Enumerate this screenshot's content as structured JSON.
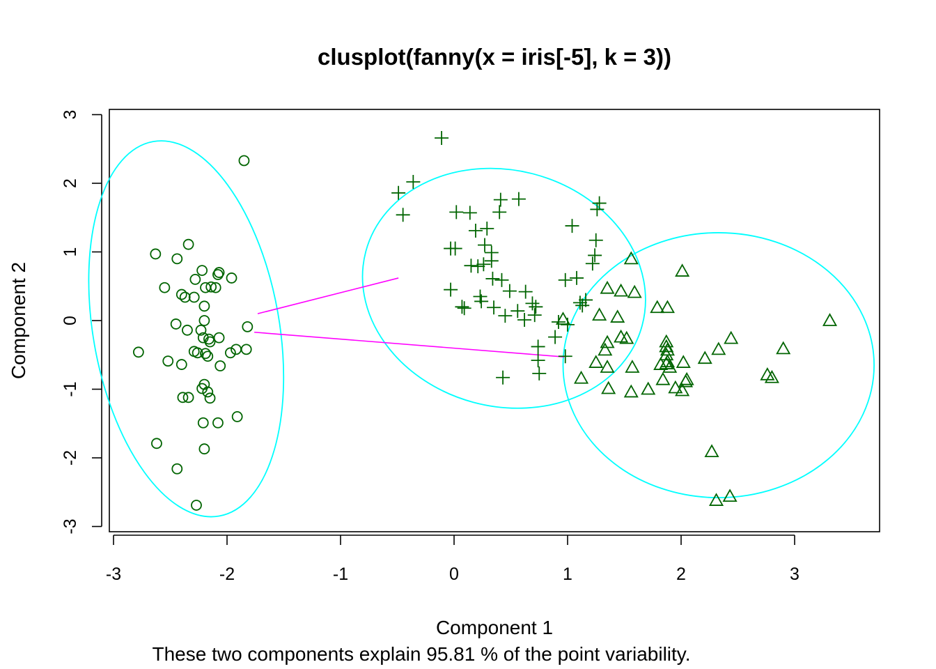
{
  "chart_data": {
    "type": "scatter",
    "title": "clusplot(fanny(x = iris[-5], k = 3))",
    "xlabel": "Component 1",
    "ylabel": "Component 2",
    "subtitle": "These two components explain 95.81 % of the point variability.",
    "xlim": [
      -3,
      3.5
    ],
    "ylim": [
      -3,
      3
    ],
    "xticks": [
      -3,
      -2,
      -1,
      0,
      1,
      2,
      3
    ],
    "yticks": [
      -3,
      -2,
      -1,
      0,
      1,
      2,
      3
    ],
    "xtick_labels": [
      "-3",
      "-2",
      "-1",
      "0",
      "1",
      "2",
      "3"
    ],
    "ytick_labels": [
      "-3",
      "-2",
      "-1",
      "0",
      "1",
      "2",
      "3"
    ],
    "point_color": "#006400",
    "ellipse_color": "#00FFFF",
    "line_color": "#FF00FF",
    "clusters": [
      {
        "marker": "circle",
        "ellipse": {
          "cx": -2.36,
          "cy": -0.12,
          "rx": 0.82,
          "ry": 2.77,
          "angle_deg": 80
        },
        "points": [
          [
            -1.85,
            2.33
          ],
          [
            -2.63,
            0.97
          ],
          [
            -2.34,
            1.11
          ],
          [
            -2.44,
            0.9
          ],
          [
            -2.55,
            0.48
          ],
          [
            -2.22,
            0.73
          ],
          [
            -2.28,
            0.6
          ],
          [
            -2.4,
            0.38
          ],
          [
            -2.37,
            0.34
          ],
          [
            -2.29,
            0.34
          ],
          [
            -2.19,
            0.48
          ],
          [
            -2.14,
            0.49
          ],
          [
            -2.1,
            0.48
          ],
          [
            -2.07,
            0.7
          ],
          [
            -2.08,
            0.67
          ],
          [
            -1.96,
            0.62
          ],
          [
            -2.2,
            0.21
          ],
          [
            -2.45,
            -0.05
          ],
          [
            -2.2,
            0.0
          ],
          [
            -2.35,
            -0.14
          ],
          [
            -2.23,
            -0.14
          ],
          [
            -2.21,
            -0.25
          ],
          [
            -2.16,
            -0.27
          ],
          [
            -2.15,
            -0.31
          ],
          [
            -2.07,
            -0.25
          ],
          [
            -1.82,
            -0.09
          ],
          [
            -2.78,
            -0.46
          ],
          [
            -2.52,
            -0.59
          ],
          [
            -2.29,
            -0.45
          ],
          [
            -2.26,
            -0.47
          ],
          [
            -2.19,
            -0.48
          ],
          [
            -2.17,
            -0.52
          ],
          [
            -2.06,
            -0.66
          ],
          [
            -1.97,
            -0.47
          ],
          [
            -1.92,
            -0.42
          ],
          [
            -1.83,
            -0.42
          ],
          [
            -2.4,
            -0.64
          ],
          [
            -2.2,
            -0.93
          ],
          [
            -2.22,
            -0.99
          ],
          [
            -2.17,
            -1.04
          ],
          [
            -2.15,
            -1.13
          ],
          [
            -2.39,
            -1.12
          ],
          [
            -2.34,
            -1.12
          ],
          [
            -2.21,
            -1.49
          ],
          [
            -2.08,
            -1.49
          ],
          [
            -1.91,
            -1.4
          ],
          [
            -2.62,
            -1.79
          ],
          [
            -2.2,
            -1.87
          ],
          [
            -2.44,
            -2.16
          ],
          [
            -2.27,
            -2.69
          ]
        ]
      },
      {
        "marker": "plus",
        "ellipse": {
          "cx": 0.44,
          "cy": 0.47,
          "rx": 1.26,
          "ry": 1.72,
          "angle_deg": 105
        },
        "points": [
          [
            -0.11,
            2.66
          ],
          [
            -0.36,
            2.02
          ],
          [
            -0.49,
            1.86
          ],
          [
            -0.45,
            1.54
          ],
          [
            0.02,
            1.58
          ],
          [
            0.14,
            1.57
          ],
          [
            0.4,
            1.58
          ],
          [
            0.41,
            1.76
          ],
          [
            0.57,
            1.77
          ],
          [
            0.19,
            1.31
          ],
          [
            0.29,
            1.34
          ],
          [
            0.27,
            1.1
          ],
          [
            0.33,
            0.99
          ],
          [
            -0.03,
            1.05
          ],
          [
            0.01,
            1.05
          ],
          [
            0.33,
            0.87
          ],
          [
            0.15,
            0.8
          ],
          [
            0.21,
            0.79
          ],
          [
            0.26,
            0.82
          ],
          [
            0.34,
            0.61
          ],
          [
            0.42,
            0.59
          ],
          [
            0.49,
            0.43
          ],
          [
            -0.03,
            0.45
          ],
          [
            0.23,
            0.35
          ],
          [
            0.24,
            0.28
          ],
          [
            0.07,
            0.2
          ],
          [
            0.09,
            0.18
          ],
          [
            0.35,
            0.19
          ],
          [
            0.45,
            0.07
          ],
          [
            0.56,
            0.14
          ],
          [
            0.63,
            0.42
          ],
          [
            0.62,
            0.01
          ],
          [
            0.69,
            0.25
          ],
          [
            0.72,
            0.2
          ],
          [
            0.71,
            0.08
          ],
          [
            1.04,
            1.38
          ],
          [
            1.26,
            1.62
          ],
          [
            1.28,
            1.71
          ],
          [
            1.25,
            1.17
          ],
          [
            1.24,
            0.95
          ],
          [
            1.22,
            0.83
          ],
          [
            0.98,
            0.59
          ],
          [
            1.08,
            0.62
          ],
          [
            1.11,
            0.26
          ],
          [
            1.16,
            0.3
          ],
          [
            0.92,
            -0.02
          ],
          [
            1.0,
            -0.06
          ],
          [
            0.89,
            -0.24
          ],
          [
            0.74,
            -0.38
          ],
          [
            0.98,
            -0.52
          ],
          [
            0.74,
            -0.58
          ],
          [
            0.75,
            -0.77
          ],
          [
            0.43,
            -0.83
          ],
          [
            1.13,
            0.22
          ]
        ]
      },
      {
        "marker": "triangle",
        "ellipse": {
          "cx": 2.33,
          "cy": -0.65,
          "rx": 1.37,
          "ry": 1.93,
          "angle_deg": 90
        },
        "points": [
          [
            1.56,
            0.9
          ],
          [
            2.01,
            0.72
          ],
          [
            1.35,
            0.47
          ],
          [
            1.47,
            0.43
          ],
          [
            1.59,
            0.41
          ],
          [
            1.79,
            0.19
          ],
          [
            1.88,
            0.19
          ],
          [
            1.28,
            0.08
          ],
          [
            1.44,
            0.05
          ],
          [
            0.96,
            0.02
          ],
          [
            1.47,
            -0.24
          ],
          [
            1.52,
            -0.26
          ],
          [
            1.35,
            -0.32
          ],
          [
            1.33,
            -0.43
          ],
          [
            1.87,
            -0.31
          ],
          [
            1.87,
            -0.38
          ],
          [
            1.88,
            -0.43
          ],
          [
            1.87,
            -0.5
          ],
          [
            2.33,
            -0.42
          ],
          [
            2.44,
            -0.26
          ],
          [
            2.9,
            -0.41
          ],
          [
            3.31,
            0.0
          ],
          [
            2.21,
            -0.55
          ],
          [
            2.02,
            -0.61
          ],
          [
            1.88,
            -0.6
          ],
          [
            1.87,
            -0.63
          ],
          [
            1.82,
            -0.64
          ],
          [
            1.9,
            -0.68
          ],
          [
            1.57,
            -0.68
          ],
          [
            1.25,
            -0.61
          ],
          [
            1.35,
            -0.68
          ],
          [
            1.12,
            -0.84
          ],
          [
            1.36,
            -0.99
          ],
          [
            1.56,
            -1.04
          ],
          [
            1.71,
            -1.0
          ],
          [
            1.84,
            -0.86
          ],
          [
            1.95,
            -0.98
          ],
          [
            2.01,
            -1.02
          ],
          [
            2.05,
            -0.86
          ],
          [
            2.04,
            -0.89
          ],
          [
            2.76,
            -0.79
          ],
          [
            2.8,
            -0.83
          ],
          [
            2.27,
            -1.91
          ],
          [
            2.31,
            -2.62
          ],
          [
            2.43,
            -2.56
          ]
        ]
      }
    ],
    "connecting_lines": [
      {
        "from": [
          -1.73,
          0.1
        ],
        "to": [
          -0.49,
          0.62
        ]
      },
      {
        "from": [
          -1.76,
          -0.17
        ],
        "to": [
          0.97,
          -0.53
        ]
      }
    ]
  }
}
